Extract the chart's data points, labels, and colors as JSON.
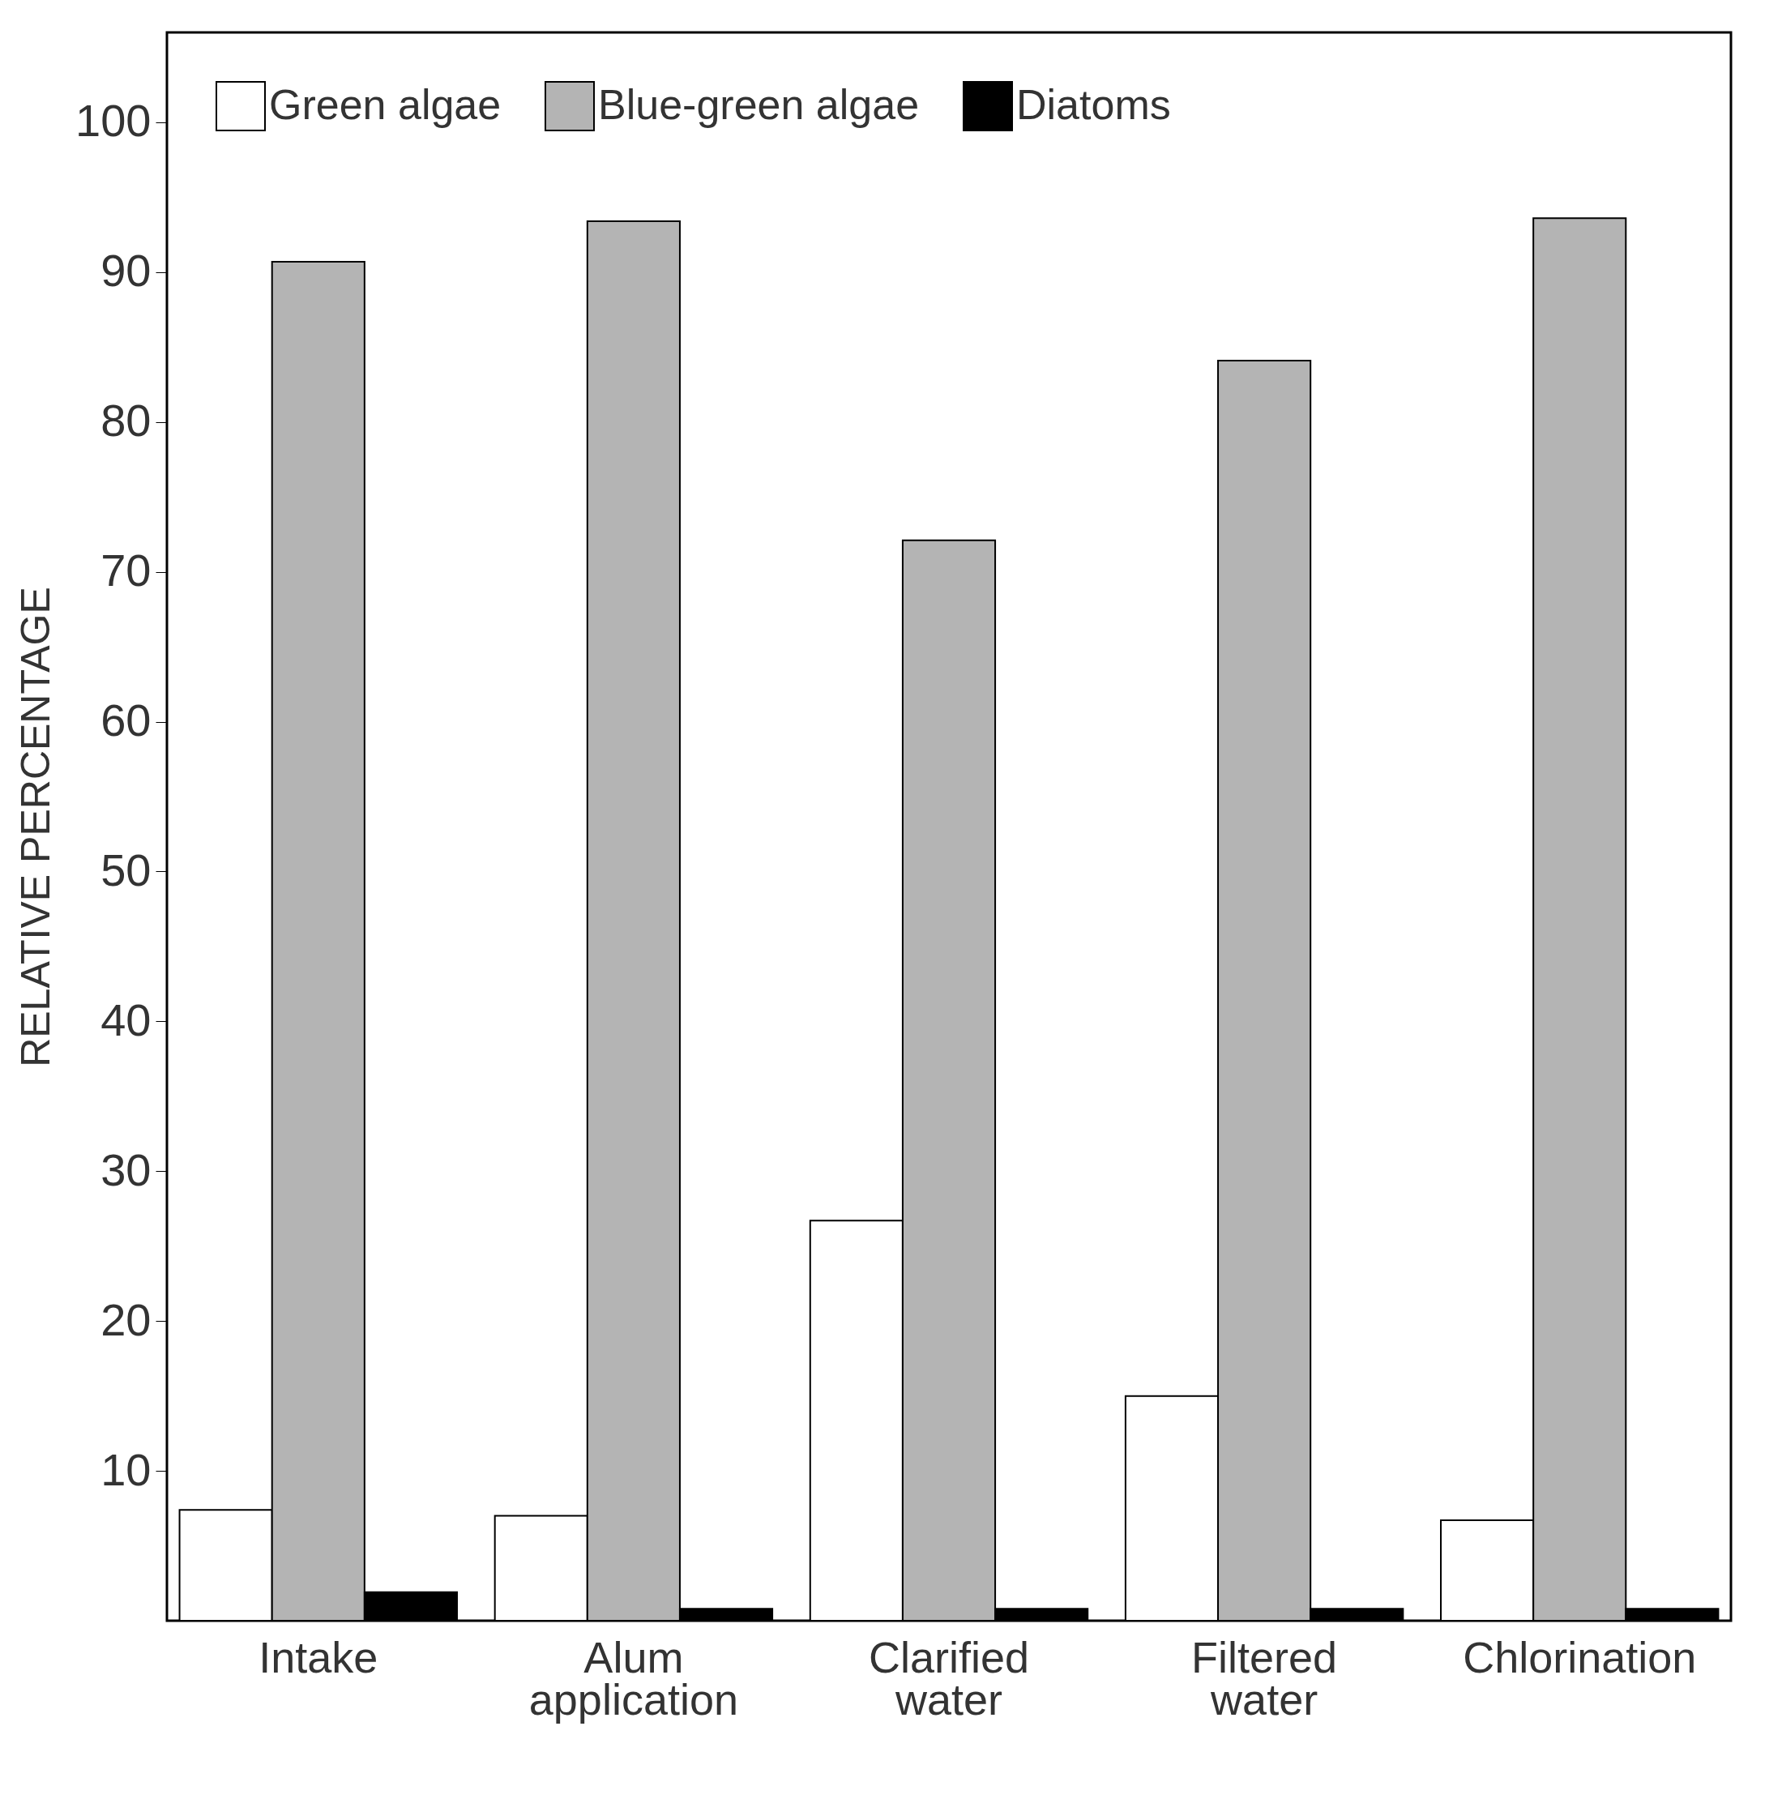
{
  "chart_data": {
    "type": "bar",
    "ylabel": "RELATIVE PERCENTAGE",
    "categories": [
      "Intake",
      "Alum application",
      "Clarified water",
      "Filtered water",
      "Chlorination"
    ],
    "series": [
      {
        "name": "Green algae",
        "color": "#ffffff",
        "values": [
          7.4,
          7.0,
          26.7,
          15.0,
          6.7
        ]
      },
      {
        "name": "Blue-green algae",
        "color": "#b4b4b4",
        "values": [
          90.7,
          93.4,
          72.1,
          84.1,
          93.6
        ]
      },
      {
        "name": "Diatoms",
        "color": "#000000",
        "values": [
          1.9,
          0.8,
          0.8,
          0.8,
          0.8
        ]
      }
    ],
    "ylim": [
      0,
      106
    ],
    "yticks": [
      10,
      20,
      30,
      40,
      50,
      60,
      70,
      80,
      90,
      100
    ],
    "grid": false,
    "legend": "top"
  }
}
